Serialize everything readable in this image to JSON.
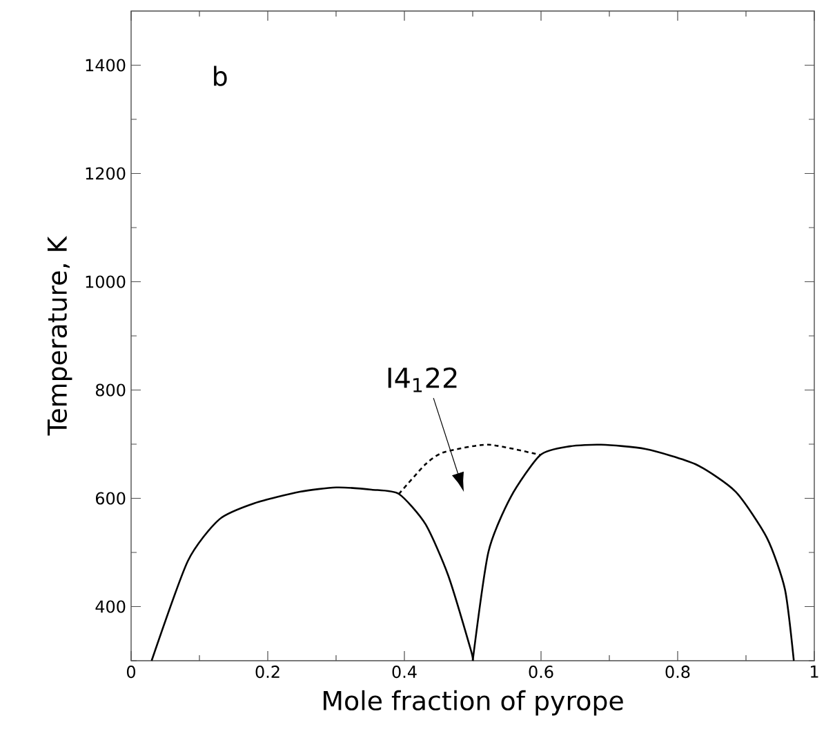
{
  "chart_data": {
    "type": "line",
    "xlabel": "Mole fraction of pyrope",
    "ylabel": "Temperature, K",
    "xlim": [
      0,
      1
    ],
    "ylim": [
      300,
      1500
    ],
    "xticks": [
      0,
      {
        "value": 0.1,
        "label": null
      },
      0.2,
      {
        "value": 0.3,
        "label": null
      },
      0.4,
      {
        "value": 0.5,
        "label": null
      },
      0.6,
      {
        "value": 0.7,
        "label": null
      },
      0.8,
      {
        "value": 0.9,
        "label": null
      },
      1
    ],
    "yticks": [
      {
        "value": 300,
        "label": null
      },
      400,
      {
        "value": 500,
        "label": null
      },
      600,
      {
        "value": 700,
        "label": null
      },
      800,
      {
        "value": 900,
        "label": null
      },
      1000,
      {
        "value": 1100,
        "label": null
      },
      1200,
      {
        "value": 1300,
        "label": null
      },
      1400
    ],
    "line_style": "solid",
    "series": [
      {
        "color": "#000000",
        "x": [
          0.03,
          0.083,
          0.129,
          0.181,
          0.247,
          0.3,
          0.352,
          0.392,
          0.431,
          0.464,
          0.497,
          0.5
        ],
        "values": [
          300,
          484,
          561,
          591,
          612,
          620,
          616,
          608,
          552,
          458,
          321,
          300
        ]
      },
      {
        "color": "#000000",
        "x": [
          0.5,
          0.523,
          0.556,
          0.599,
          0.642,
          0.688,
          0.753,
          0.826,
          0.885,
          0.931,
          0.957,
          0.97
        ],
        "values": [
          300,
          501,
          603,
          680,
          696,
          699,
          691,
          663,
          612,
          526,
          432,
          300
        ]
      },
      {
        "color": "#000000",
        "line_style": "dashed",
        "x": [
          0.392,
          0.431,
          0.458,
          0.523,
          0.599
        ],
        "values": [
          608,
          663,
          685,
          699,
          680
        ]
      }
    ],
    "annotations": [
      "b",
      "I4$_{1}$22"
    ]
  }
}
